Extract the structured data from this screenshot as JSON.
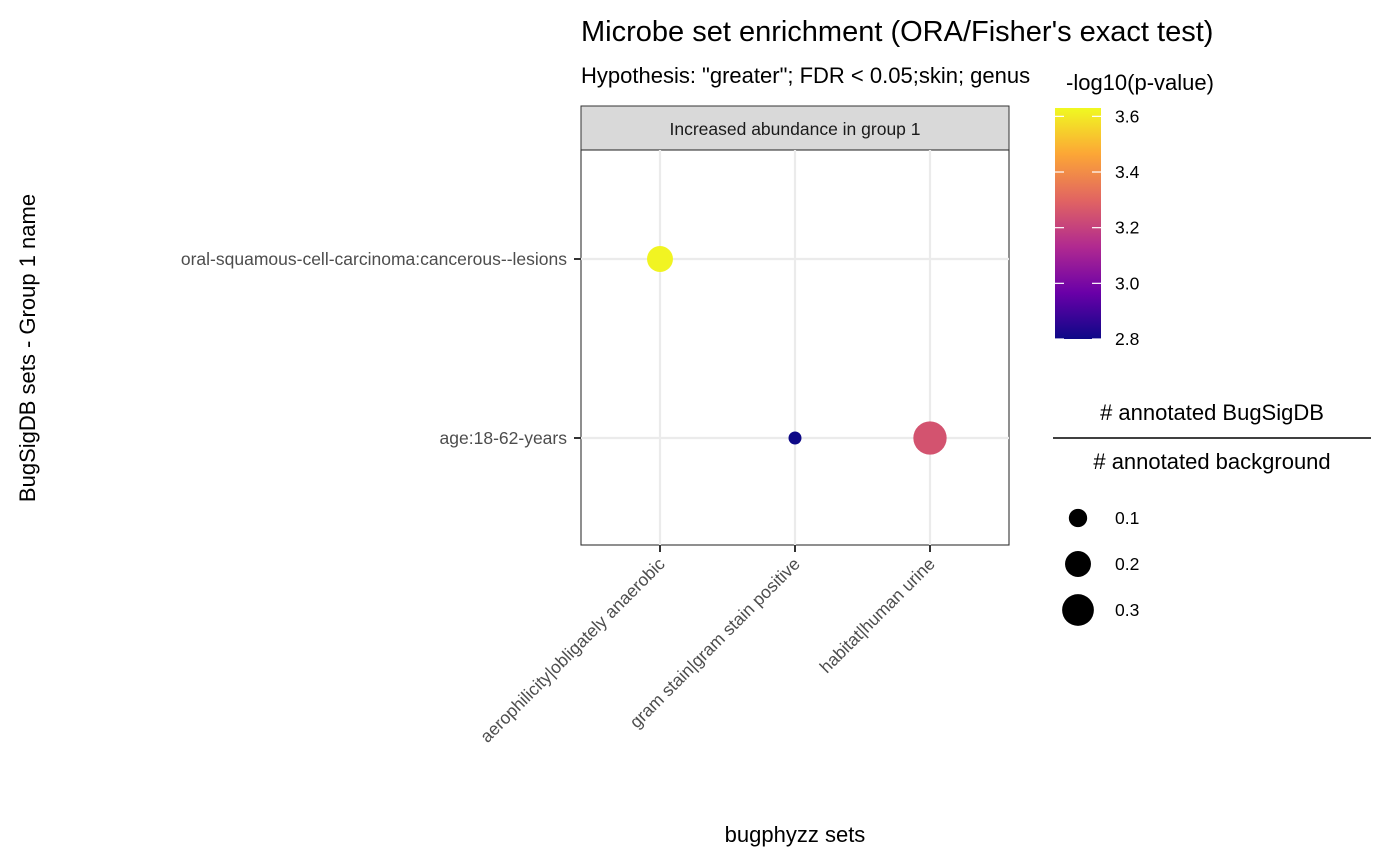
{
  "chart_data": {
    "type": "scatter",
    "title": "Microbe set enrichment (ORA/Fisher's exact test)",
    "subtitle": "Hypothesis: \"greater\"; FDR < 0.05;skin; genus",
    "facet_label": "Increased abundance in group 1",
    "xlabel": "bugphyzz sets",
    "ylabel": "BugSigDB sets - Group 1 name",
    "x_categories": [
      "aerophilicity|obligately anaerobic",
      "gram stain|gram stain positive",
      "habitat|human urine"
    ],
    "y_categories": [
      "oral-squamous-cell-carcinoma:cancerous--lesions",
      "age:18-62-years"
    ],
    "points": [
      {
        "x": "aerophilicity|obligately anaerobic",
        "y": "oral-squamous-cell-carcinoma:cancerous--lesions",
        "neg_log10_p": 3.62,
        "ratio": 0.2
      },
      {
        "x": "gram stain|gram stain positive",
        "y": "age:18-62-years",
        "neg_log10_p": 2.8,
        "ratio": 0.05
      },
      {
        "x": "habitat|human urine",
        "y": "age:18-62-years",
        "neg_log10_p": 3.25,
        "ratio": 0.33
      }
    ],
    "grid": true,
    "color_legend": {
      "title": "-log10(p-value)",
      "ticks": [
        "2.8",
        "3.0",
        "3.2",
        "3.4",
        "3.6"
      ],
      "range": [
        2.8,
        3.63
      ],
      "palette": [
        "#0d0887",
        "#6a00a8",
        "#b12a90",
        "#e16462",
        "#fca636",
        "#f0f921"
      ]
    },
    "size_legend": {
      "title_numerator": "# annotated BugSigDB",
      "title_denominator": "# annotated background",
      "ticks": [
        "0.1",
        "0.2",
        "0.3"
      ],
      "values": [
        0.1,
        0.2,
        0.3
      ]
    }
  }
}
